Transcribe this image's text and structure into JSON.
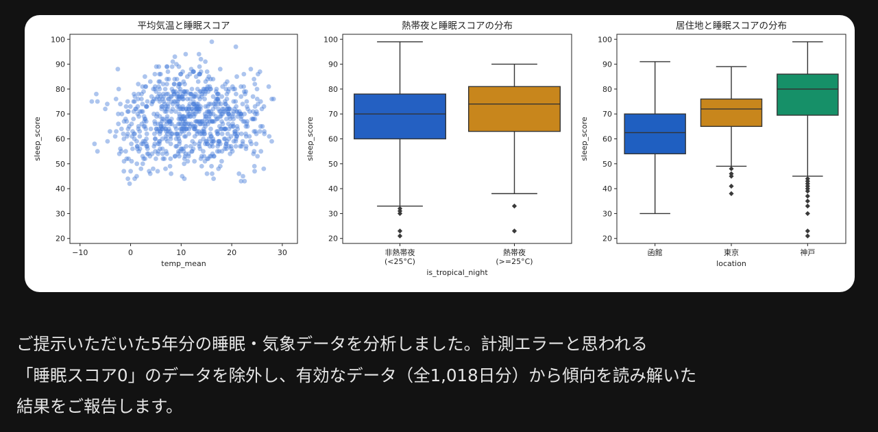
{
  "response": {
    "lines": [
      "ご提示いただいた5年分の睡眠・気象データを分析しました。計測エラーと思われる",
      "「睡眠スコア0」のデータを除外し、有効なデータ（全1,018日分）から傾向を読み解いた",
      "結果をご報告します。"
    ]
  },
  "chart_data": [
    {
      "type": "scatter",
      "title": "平均気温と睡眠スコア",
      "xlabel": "temp_mean",
      "ylabel": "sleep_score",
      "xlim": [
        -12,
        33
      ],
      "ylim": [
        18,
        102
      ],
      "xticks": [
        -10,
        0,
        10,
        20,
        30
      ],
      "yticks": [
        20,
        30,
        40,
        50,
        60,
        70,
        80,
        90,
        100
      ],
      "color": "#4a7fd9",
      "n_points": 1018,
      "points_note": "points approximate the visible cloud; values centred around temp 5-30, sleep 40-95"
    },
    {
      "type": "box",
      "title": "熱帯夜と睡眠スコアの分布",
      "xlabel": "is_tropical_night",
      "ylabel": "sleep_score",
      "ylim": [
        18,
        102
      ],
      "yticks": [
        20,
        30,
        40,
        50,
        60,
        70,
        80,
        90,
        100
      ],
      "categories": [
        {
          "label": "非熱帯夜",
          "sub": "(<25°C)",
          "color": "#2460c2",
          "whisker_low": 33,
          "q1": 60,
          "median": 70,
          "q3": 78,
          "whisker_high": 99,
          "outliers": [
            32,
            31,
            30,
            23,
            21
          ]
        },
        {
          "label": "熱帯夜",
          "sub": "(>=25°C)",
          "color": "#c8861c",
          "whisker_low": 38,
          "q1": 63,
          "median": 74,
          "q3": 81,
          "whisker_high": 90,
          "outliers": [
            33,
            23
          ]
        }
      ]
    },
    {
      "type": "box",
      "title": "居住地と睡眠スコアの分布",
      "xlabel": "location",
      "ylabel": "sleep_score",
      "ylim": [
        18,
        102
      ],
      "yticks": [
        20,
        30,
        40,
        50,
        60,
        70,
        80,
        90,
        100
      ],
      "categories": [
        {
          "label": "函館",
          "sub": "",
          "color": "#1f5fc1",
          "whisker_low": 30,
          "q1": 54,
          "median": 62.5,
          "q3": 70,
          "whisker_high": 91,
          "outliers": []
        },
        {
          "label": "東京",
          "sub": "",
          "color": "#c8861c",
          "whisker_low": 49,
          "q1": 65,
          "median": 72,
          "q3": 76,
          "whisker_high": 89,
          "outliers": [
            48,
            46,
            45,
            41,
            38
          ]
        },
        {
          "label": "神戸",
          "sub": "",
          "color": "#169068",
          "whisker_low": 45,
          "q1": 69.5,
          "median": 80,
          "q3": 86,
          "whisker_high": 99,
          "outliers": [
            44,
            43,
            42,
            41,
            40,
            39,
            37,
            35,
            33,
            30,
            23,
            21
          ]
        }
      ]
    }
  ]
}
